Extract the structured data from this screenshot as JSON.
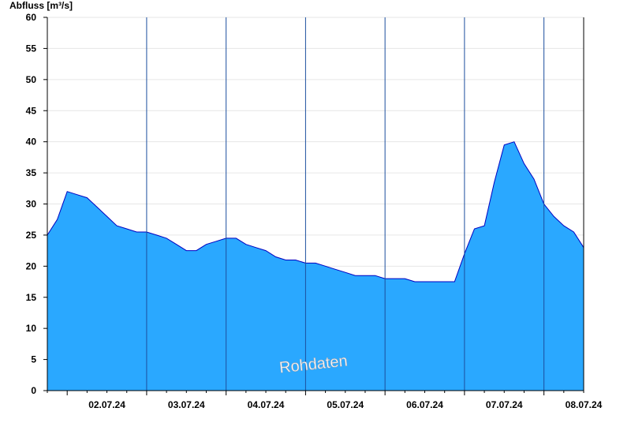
{
  "chart_data": {
    "type": "area",
    "ylabel": "Abfluss [m³/s]",
    "ylim": [
      0,
      60
    ],
    "yticks": [
      0,
      5,
      10,
      15,
      20,
      25,
      30,
      35,
      40,
      45,
      50,
      55,
      60
    ],
    "xlim": [
      "01.07.24 18:00",
      "08.07.24 12:00"
    ],
    "x_tick_labels": [
      "02.07.24",
      "03.07.24",
      "04.07.24",
      "05.07.24",
      "06.07.24",
      "07.07.24",
      "08.07.24"
    ],
    "day_boundaries": [
      "03.07.24 00:00",
      "04.07.24 00:00",
      "05.07.24 00:00",
      "06.07.24 00:00",
      "07.07.24 00:00",
      "08.07.24 00:00"
    ],
    "watermark": "Rohdaten",
    "fill_color": "#2aa8ff",
    "line_color": "#0000c0",
    "series": [
      {
        "x": [
          "01.07.24 18:00",
          "01.07.24 21:00",
          "02.07.24 00:00",
          "02.07.24 03:00",
          "02.07.24 06:00",
          "02.07.24 09:00",
          "02.07.24 12:00",
          "02.07.24 15:00",
          "02.07.24 18:00",
          "02.07.24 21:00",
          "03.07.24 00:00",
          "03.07.24 03:00",
          "03.07.24 06:00",
          "03.07.24 09:00",
          "03.07.24 12:00",
          "03.07.24 15:00",
          "03.07.24 18:00",
          "03.07.24 21:00",
          "04.07.24 00:00",
          "04.07.24 03:00",
          "04.07.24 06:00",
          "04.07.24 09:00",
          "04.07.24 12:00",
          "04.07.24 15:00",
          "04.07.24 18:00",
          "04.07.24 21:00",
          "05.07.24 00:00",
          "05.07.24 03:00",
          "05.07.24 06:00",
          "05.07.24 09:00",
          "05.07.24 12:00",
          "05.07.24 15:00",
          "05.07.24 18:00",
          "05.07.24 21:00",
          "06.07.24 00:00",
          "06.07.24 03:00",
          "06.07.24 06:00",
          "06.07.24 09:00",
          "06.07.24 12:00",
          "06.07.24 15:00",
          "06.07.24 18:00",
          "06.07.24 21:00",
          "07.07.24 00:00",
          "07.07.24 03:00",
          "07.07.24 06:00",
          "07.07.24 09:00",
          "07.07.24 12:00",
          "07.07.24 15:00",
          "07.07.24 18:00",
          "07.07.24 21:00",
          "08.07.24 00:00",
          "08.07.24 03:00",
          "08.07.24 06:00",
          "08.07.24 09:00",
          "08.07.24 12:00"
        ],
        "values": [
          25.0,
          27.5,
          32.0,
          31.5,
          31.0,
          29.5,
          28.0,
          26.5,
          26.0,
          25.5,
          25.5,
          25.0,
          24.5,
          23.5,
          22.5,
          22.5,
          23.5,
          24.0,
          24.5,
          24.5,
          23.5,
          23.0,
          22.5,
          21.5,
          21.0,
          21.0,
          20.5,
          20.5,
          20.0,
          19.5,
          19.0,
          18.5,
          18.5,
          18.5,
          18.0,
          18.0,
          18.0,
          17.5,
          17.5,
          17.5,
          17.5,
          17.5,
          22.0,
          26.0,
          26.5,
          33.5,
          39.5,
          40.0,
          36.5,
          34.0,
          30.0,
          28.0,
          26.5,
          25.5,
          23.0
        ]
      }
    ]
  }
}
